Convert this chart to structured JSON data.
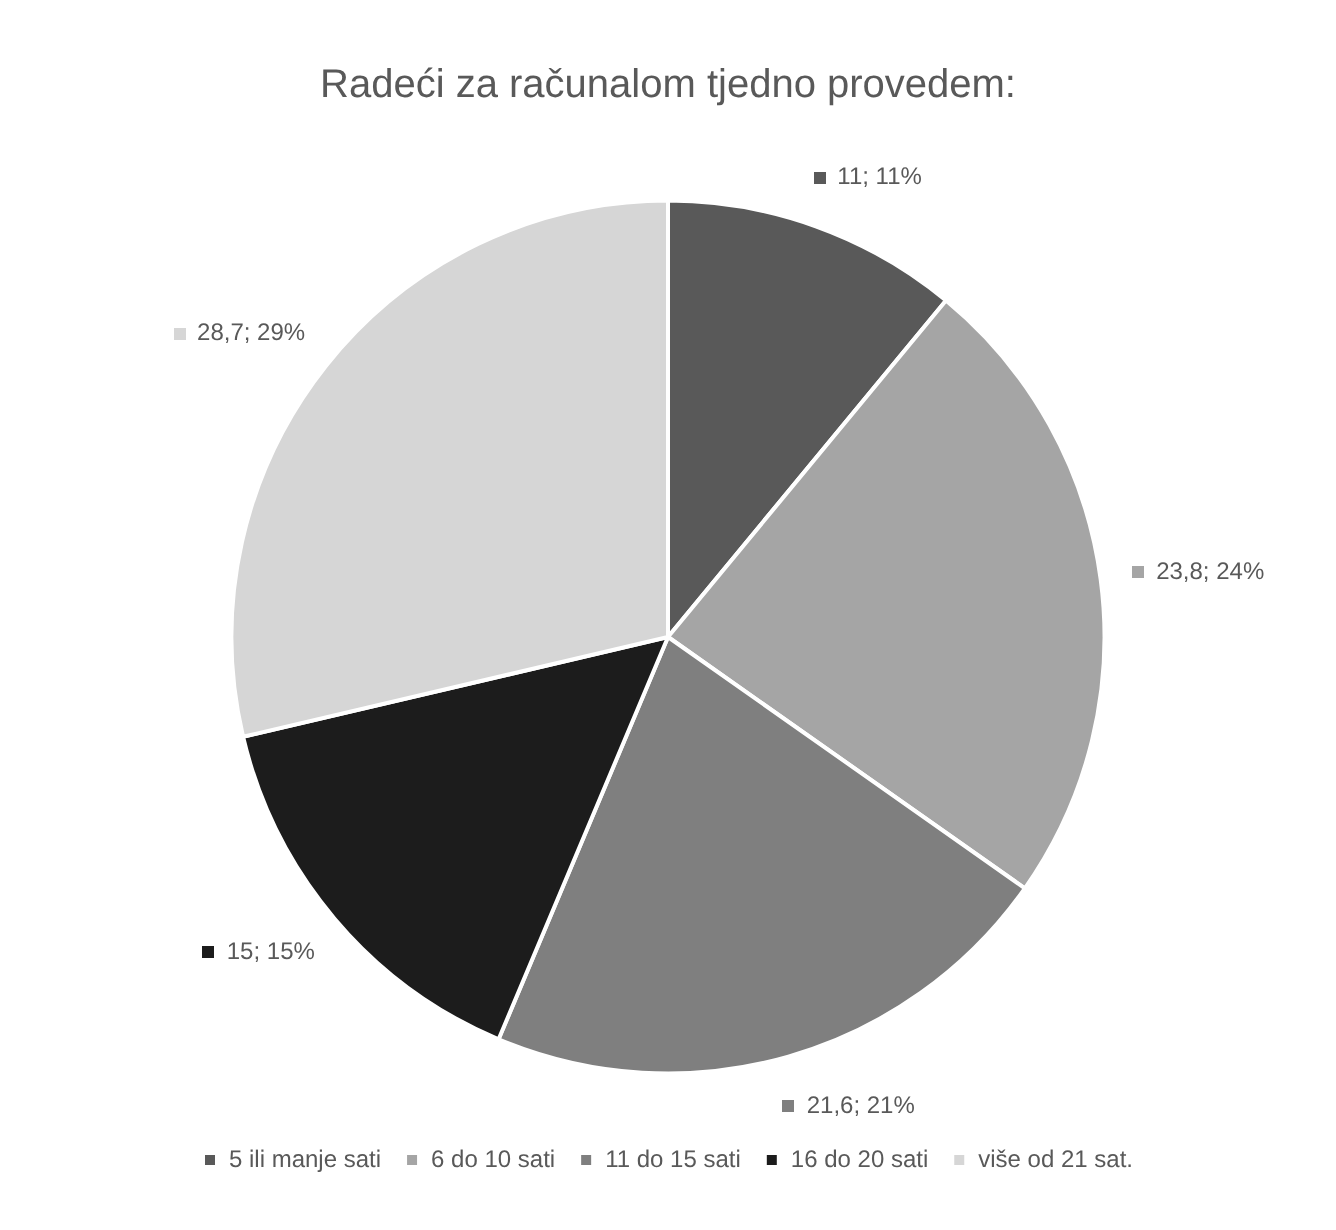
{
  "chart_data": {
    "type": "pie",
    "title": "Radeći za računalom tjedno provedem:",
    "categories": [
      "5 ili manje sati",
      "6 do 10 sati",
      "11 do 15 sati",
      "16 do 20 sati",
      "više od 21 sat."
    ],
    "values": [
      11,
      23.8,
      21.6,
      15,
      28.7
    ],
    "colors": [
      "#595959",
      "#a5a5a5",
      "#7f7f7f",
      "#1c1c1c",
      "#d6d6d6"
    ],
    "value_labels": [
      "11; 11%",
      "23,8; 24%",
      "21,6; 21%",
      "15; 15%",
      "28,7; 29%"
    ],
    "legend": "bottom"
  }
}
